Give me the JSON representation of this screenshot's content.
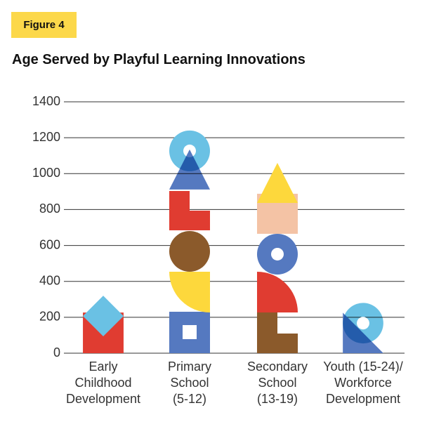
{
  "header": {
    "figure_label": "Figure 4"
  },
  "chart_data": {
    "type": "pictorial-bar",
    "title": "Age Served by Playful Learning Innovations",
    "categories": [
      "Early\nChildhood\nDevelopment",
      "Primary\nSchool\n(5-12)",
      "Secondary\nSchool\n(13-19)",
      "Youth (15-24)/\nWorkforce\nDevelopment"
    ],
    "values": [
      320,
      1240,
      1060,
      280
    ],
    "ylim": [
      0,
      1400
    ],
    "yticks": [
      0,
      200,
      400,
      600,
      800,
      1000,
      1200,
      1400
    ],
    "grid": true
  }
}
